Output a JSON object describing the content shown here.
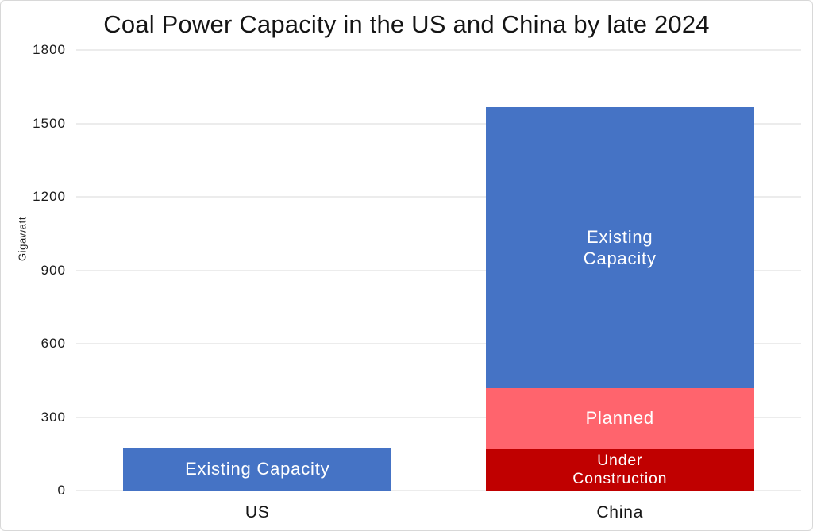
{
  "chart_data": {
    "type": "bar",
    "stacked": true,
    "title": "Coal Power Capacity in the US and China by late 2024",
    "ylabel": "Gigawatt",
    "xlabel": "",
    "unit": "GW",
    "ylim": [
      0,
      1800
    ],
    "yticks": [
      0,
      300,
      600,
      900,
      1200,
      1500,
      1800
    ],
    "grid": "horizontal",
    "legend": "none",
    "categories": [
      "US",
      "China"
    ],
    "series": [
      {
        "name": "Under Construction",
        "color": "#C00000",
        "values": [
          0,
          170
        ],
        "in_bar_labels": [
          "",
          "Under\nConstruction"
        ]
      },
      {
        "name": "Planned",
        "color": "#FF646D",
        "values": [
          0,
          250
        ],
        "in_bar_labels": [
          "",
          "Planned"
        ]
      },
      {
        "name": "Existing Capacity",
        "color": "#4573C5",
        "values": [
          175,
          1145
        ],
        "in_bar_labels": [
          "Existing Capacity",
          "Existing\nCapacity"
        ]
      }
    ]
  },
  "colors": {
    "background": "#ffffff",
    "figure_border": "#d8d8d8",
    "gridline": "#ececec",
    "axis_text": "#1a1a1a",
    "bar_label_text": "#ffffff"
  }
}
